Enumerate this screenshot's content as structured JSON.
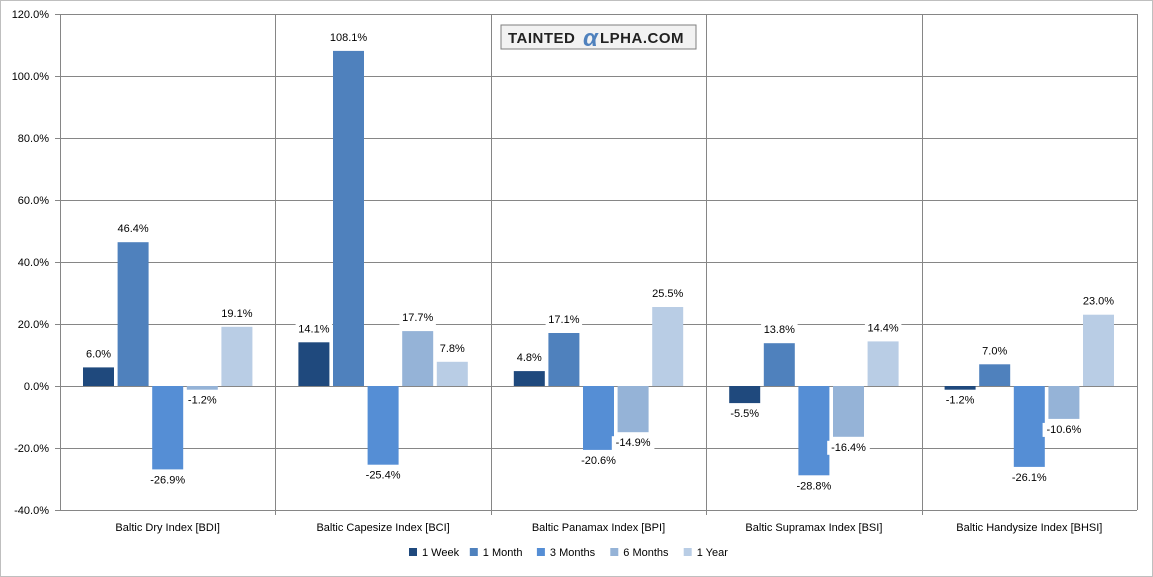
{
  "chart_data": {
    "type": "bar",
    "title": "",
    "xlabel": "",
    "ylabel": "",
    "ylim": [
      -40,
      120
    ],
    "yticks": [
      -40,
      -20,
      0,
      20,
      40,
      60,
      80,
      100,
      120
    ],
    "ytick_labels": [
      "-40.0%",
      "-20.0%",
      "0.0%",
      "20.0%",
      "40.0%",
      "60.0%",
      "80.0%",
      "100.0%",
      "120.0%"
    ],
    "categories": [
      "Baltic Dry Index [BDI]",
      "Baltic Capesize Index [BCI]",
      "Baltic Panamax Index [BPI]",
      "Baltic Supramax Index [BSI]",
      "Baltic Handysize Index [BHSI]"
    ],
    "series": [
      {
        "name": "1 Week",
        "color": "#1f497d",
        "values": [
          6.0,
          14.1,
          4.8,
          -5.5,
          -1.2
        ],
        "labels": [
          "6.0%",
          "14.1%",
          "4.8%",
          "-5.5%",
          "-1.2%"
        ]
      },
      {
        "name": "1 Month",
        "color": "#4f81bd",
        "values": [
          46.4,
          108.1,
          17.1,
          13.8,
          7.0
        ],
        "labels": [
          "46.4%",
          "108.1%",
          "17.1%",
          "13.8%",
          "7.0%"
        ]
      },
      {
        "name": "3 Months",
        "color": "#558ed5",
        "values": [
          -26.9,
          -25.4,
          -20.6,
          -28.8,
          -26.1
        ],
        "labels": [
          "-26.9%",
          "-25.4%",
          "-20.6%",
          "-28.8%",
          "-26.1%"
        ]
      },
      {
        "name": "6 Months",
        "color": "#95b3d7",
        "values": [
          -1.2,
          17.7,
          -14.9,
          -16.4,
          -10.6
        ],
        "labels": [
          "-1.2%",
          "17.7%",
          "-14.9%",
          "-16.4%",
          "-10.6%"
        ]
      },
      {
        "name": "1 Year",
        "color": "#b9cde5",
        "values": [
          19.1,
          7.8,
          25.5,
          14.4,
          23.0
        ],
        "labels": [
          "19.1%",
          "7.8%",
          "25.5%",
          "14.4%",
          "23.0%"
        ]
      }
    ],
    "legend_position": "bottom",
    "grid": true
  },
  "watermark": {
    "prefix": "TAINTED",
    "alpha": "α",
    "suffix": "LPHA.COM"
  }
}
